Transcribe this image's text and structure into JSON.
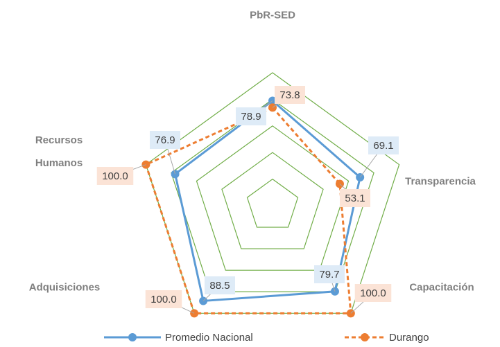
{
  "chart_data": {
    "type": "radar",
    "title": "PbR-SED",
    "categories": [
      "PbR-SED",
      "Transparencia",
      "Capacitación",
      "Adquisiciones",
      "Recursos Humanos"
    ],
    "series": [
      {
        "name": "Promedio Nacional",
        "color": "#5b9bd5",
        "values": [
          78.9,
          69.1,
          79.7,
          88.5,
          76.9
        ],
        "value_labels": [
          "78.9",
          "69.1",
          "79.7",
          "88.5",
          "76.9"
        ]
      },
      {
        "name": "Durango",
        "color": "#ed7d31",
        "values": [
          73.8,
          53.1,
          100.0,
          100.0,
          100.0
        ],
        "value_labels": [
          "73.8",
          "53.1",
          "100.0",
          "100.0",
          "100.0"
        ]
      }
    ],
    "ylim": [
      0,
      100
    ],
    "yticks": [
      20,
      40,
      60,
      80,
      100
    ],
    "grid": true,
    "grid_color": "#70ad47",
    "legend": "bottom"
  }
}
